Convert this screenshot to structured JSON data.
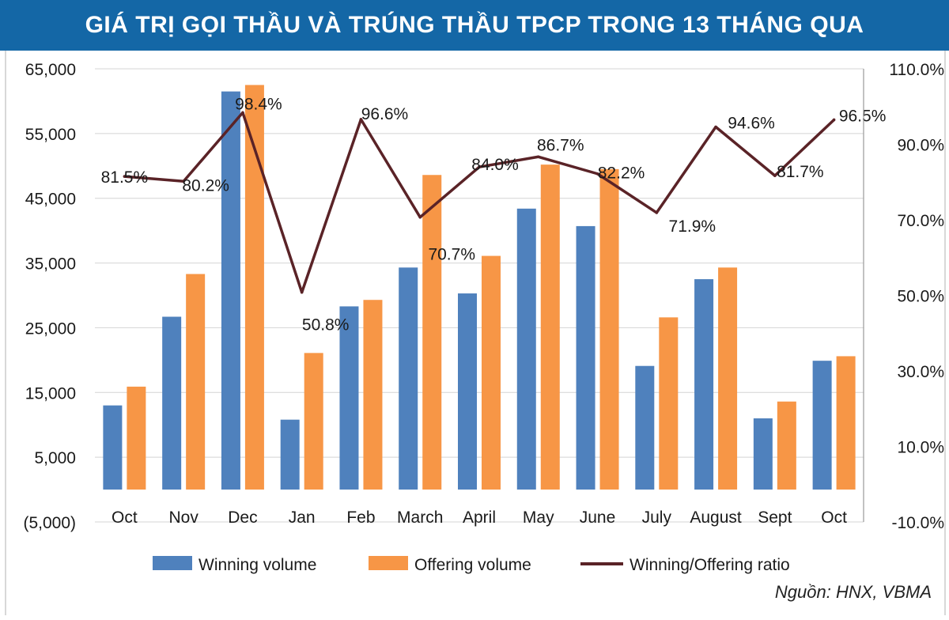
{
  "header": {
    "title": "GIÁ TRỊ GỌI THẦU VÀ TRÚNG THẦU TPCP TRONG 13 THÁNG QUA"
  },
  "source": "Nguồn: HNX, VBMA",
  "chart_data": {
    "type": "bar",
    "title": "GIÁ TRỊ GỌI THẦU VÀ TRÚNG THẦU TPCP TRONG 13 THÁNG QUA",
    "categories": [
      "Oct",
      "Nov",
      "Dec",
      "Jan",
      "Feb",
      "March",
      "April",
      "May",
      "June",
      "July",
      "August",
      "Sept",
      "Oct"
    ],
    "series": [
      {
        "name": "Winning volume",
        "type": "bar",
        "axis": "left",
        "color": "#4f81bd",
        "values": [
          13000,
          26700,
          61500,
          10800,
          28300,
          34300,
          30300,
          43400,
          40700,
          19100,
          32500,
          11000,
          19900
        ]
      },
      {
        "name": "Offering volume",
        "type": "bar",
        "axis": "left",
        "color": "#f79646",
        "values": [
          15900,
          33300,
          62500,
          21100,
          29300,
          48600,
          36100,
          50200,
          49500,
          26600,
          34300,
          13600,
          20600
        ]
      },
      {
        "name": "Winning/Offering ratio",
        "type": "line",
        "axis": "right",
        "color": "#5a2327",
        "values": [
          81.5,
          80.2,
          98.4,
          50.8,
          96.6,
          70.7,
          84.0,
          86.7,
          82.2,
          71.9,
          94.6,
          81.7,
          96.5
        ],
        "labels": [
          "81.5%",
          "80.2%",
          "98.4%",
          "50.8%",
          "96.6%",
          "70.7%",
          "84.0%",
          "86.7%",
          "82.2%",
          "71.9%",
          "94.6%",
          "81.7%",
          "96.5%"
        ]
      }
    ],
    "y_left": {
      "ylim": [
        -5000,
        65000
      ],
      "ticks": [
        -5000,
        5000,
        15000,
        25000,
        35000,
        45000,
        55000,
        65000
      ],
      "tick_labels": [
        "(5,000)",
        "5,000",
        "15,000",
        "25,000",
        "35,000",
        "45,000",
        "55,000",
        "65,000"
      ]
    },
    "y_right": {
      "ylim": [
        -10,
        110
      ],
      "ticks": [
        -10,
        10,
        30,
        50,
        70,
        90,
        110
      ],
      "tick_labels": [
        "-10.0%",
        "10.0%",
        "30.0%",
        "50.0%",
        "70.0%",
        "90.0%",
        "110.0%"
      ]
    },
    "grid": true,
    "legend_position": "bottom"
  }
}
